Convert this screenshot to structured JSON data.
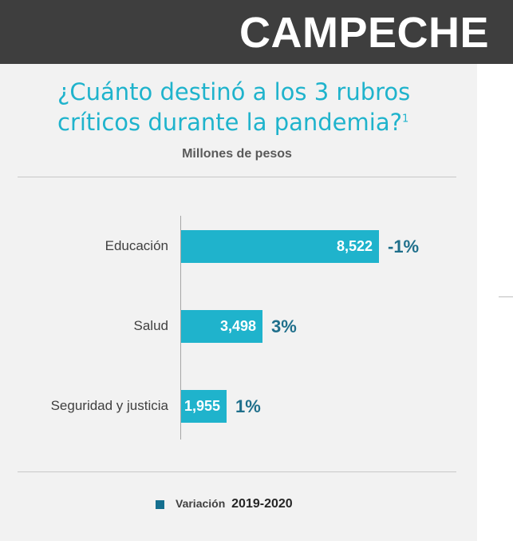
{
  "header": {
    "state": "CAMPECHE"
  },
  "chart_data": {
    "type": "bar",
    "orientation": "horizontal",
    "title": "¿Cuánto destinó a los 3 rubros críticos durante la pandemia?",
    "title_footnote": "1",
    "subtitle": "Millones de pesos",
    "categories": [
      "Educación",
      "Salud",
      "Seguridad y justicia"
    ],
    "values": [
      8522,
      3498,
      1955
    ],
    "value_labels": [
      "8,522",
      "3,498",
      "1,955"
    ],
    "changes": [
      "-1%",
      "3%",
      "1%"
    ],
    "xlim": [
      0,
      8522
    ],
    "grid": false,
    "legend": {
      "label": "Variación",
      "years": "2019-2020",
      "placement": "bottom"
    }
  },
  "colors": {
    "bar": "#1fb3cc",
    "change_text": "#1f6f8b",
    "legend_swatch": "#156f8f",
    "header_bg": "#3e3e3e"
  }
}
